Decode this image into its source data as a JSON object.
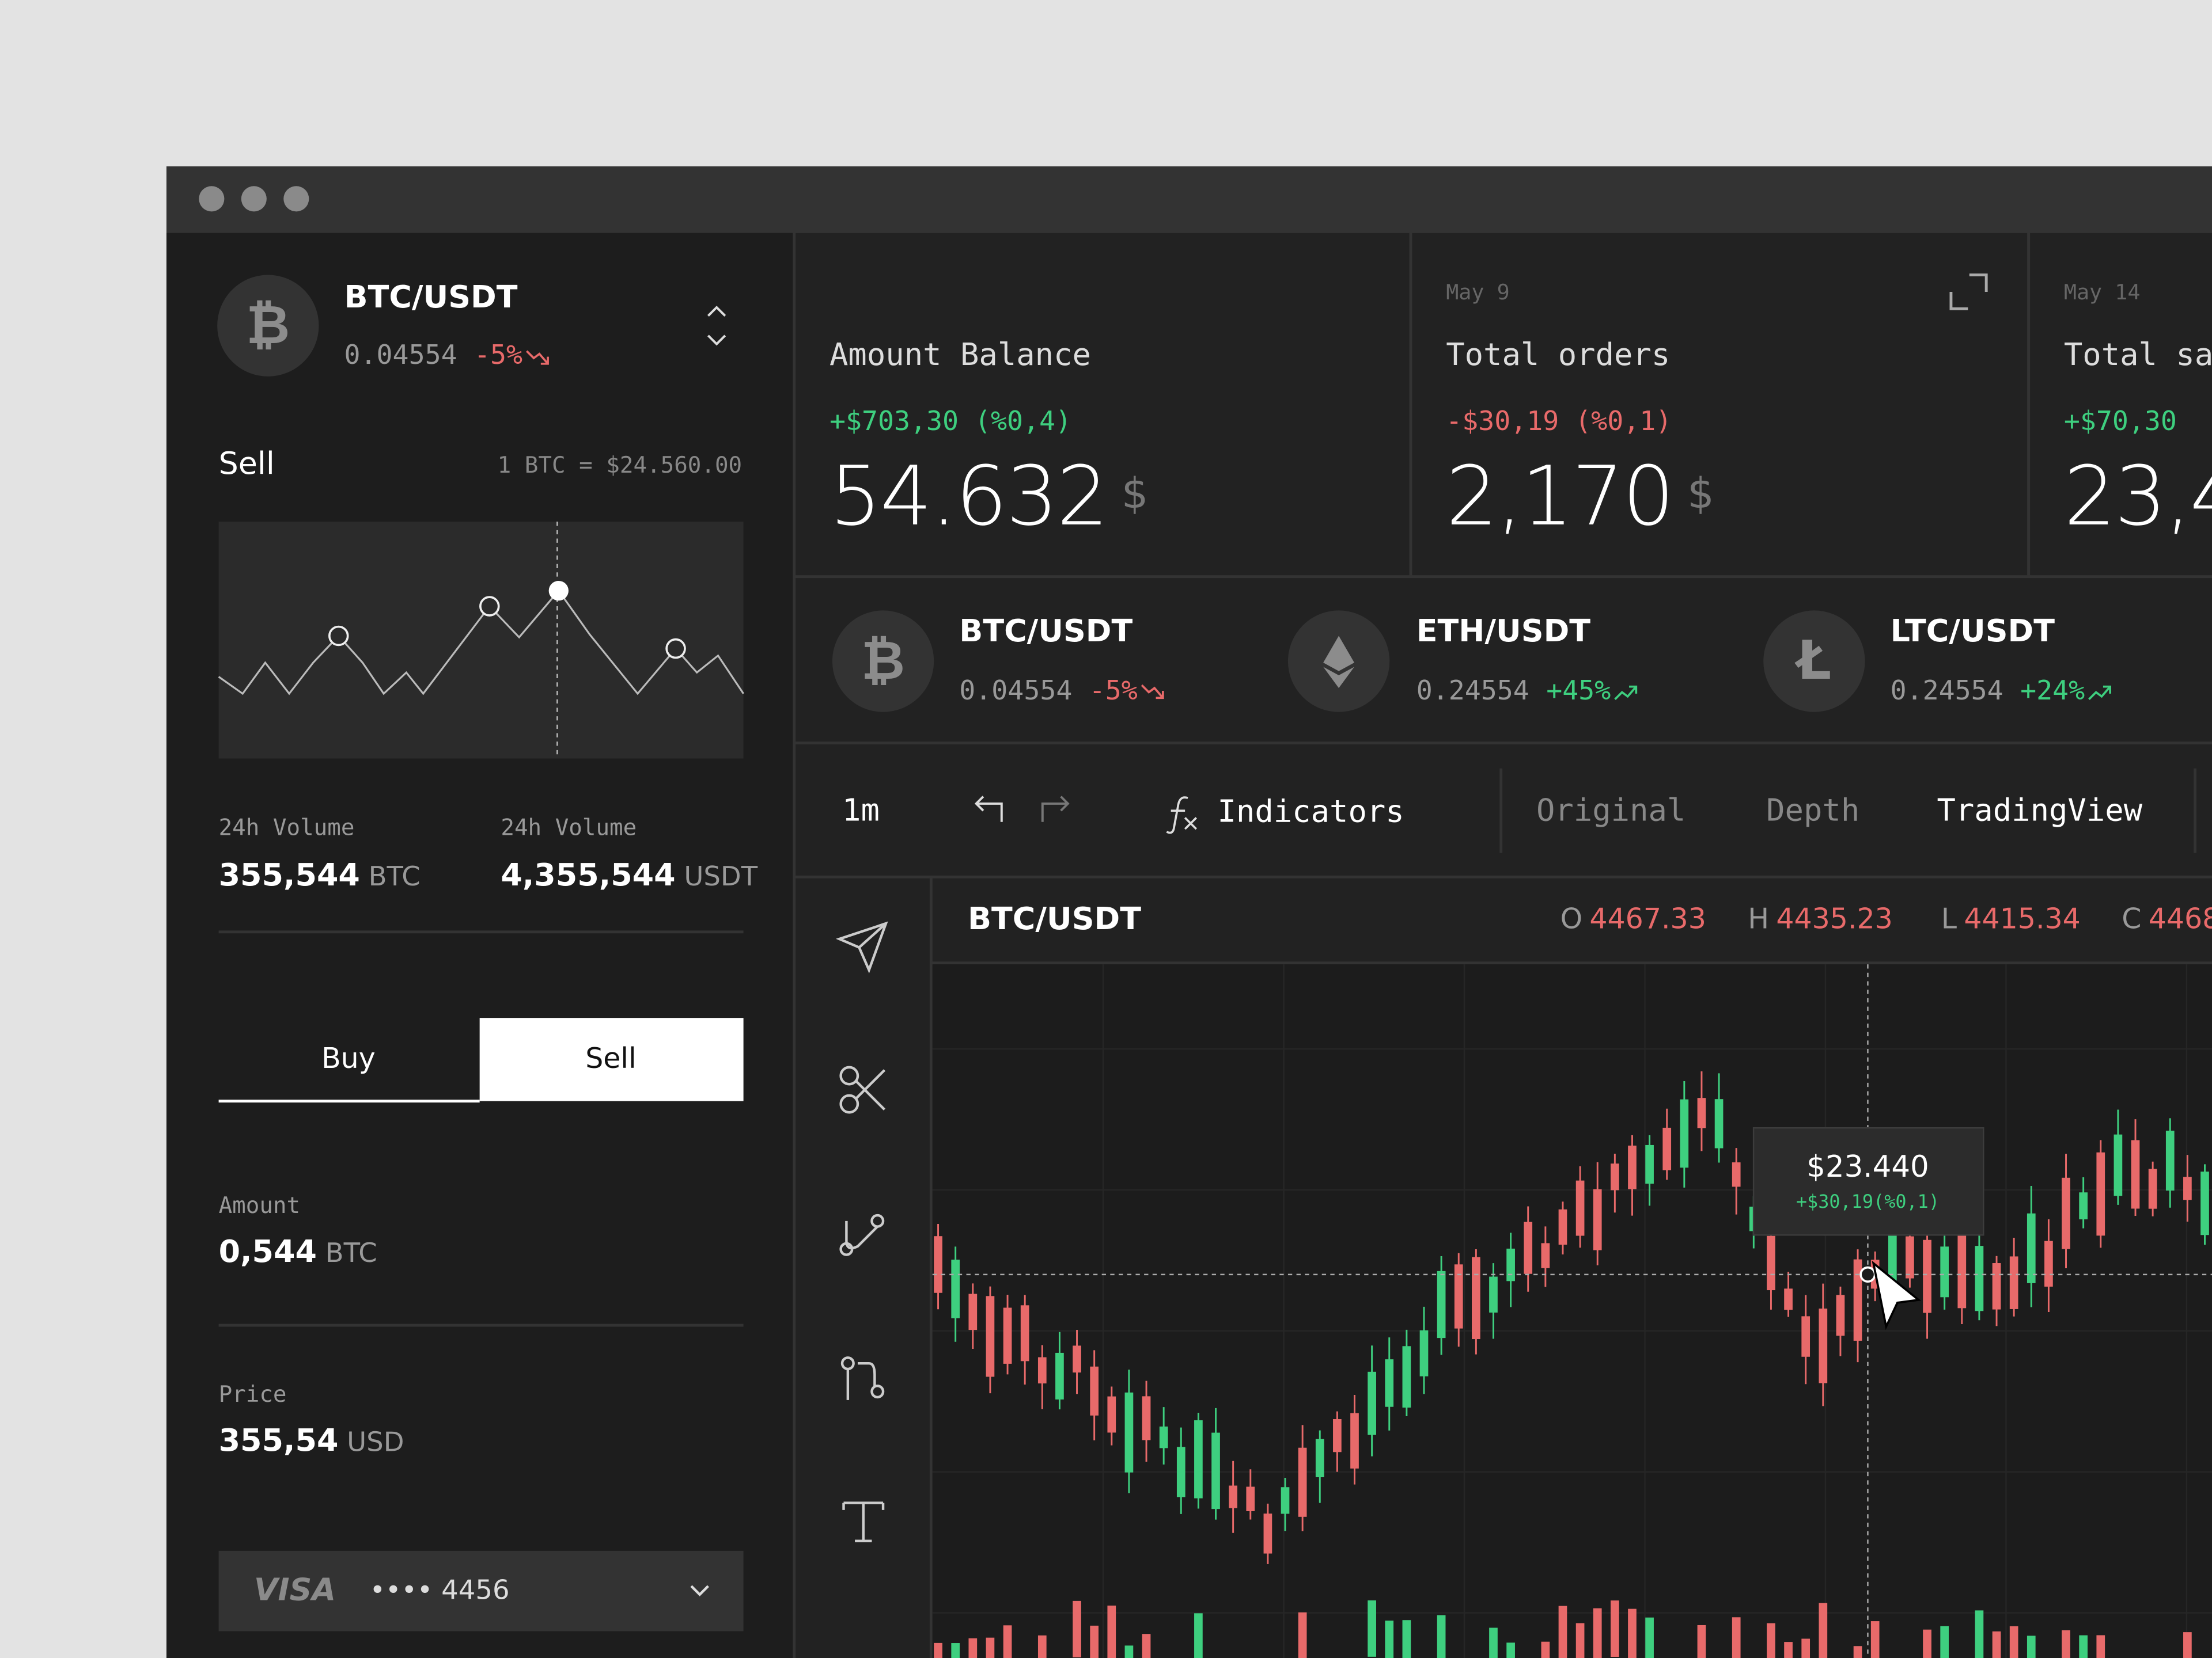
{
  "pair": {
    "symbol": "₿",
    "name": "BTC/USDT",
    "price": "0.04554",
    "change": "-5%"
  },
  "sell": {
    "title": "Sell",
    "rate": "1 BTC = $24.560.00"
  },
  "volumes": [
    {
      "label": "24h Volume",
      "value": "355,544",
      "unit": "BTC"
    },
    {
      "label": "24h Volume",
      "value": "4,355,544",
      "unit": "USDT"
    }
  ],
  "tabs": [
    "Buy",
    "Sell"
  ],
  "fields": [
    {
      "label": "Amount",
      "value": "0,544",
      "unit": "BTC"
    },
    {
      "label": "Price",
      "value": "355,54",
      "unit": "USD"
    }
  ],
  "card": {
    "brand": "VISA",
    "number": "•••• 4456"
  },
  "stats": [
    {
      "title": "Amount Balance",
      "change": "+$703,30 (%0,4)",
      "value": "54.632",
      "unit": "$"
    },
    {
      "date": "May 9",
      "title": "Total orders",
      "change": "-$30,19 (%0,1)",
      "value": "2,170",
      "unit": "$"
    },
    {
      "date": "May 14",
      "title": "Total sa",
      "change": "+$70,30",
      "value": "23,4"
    }
  ],
  "tickers": [
    {
      "symbol": "₿",
      "name": "BTC/USDT",
      "price": "0.04554",
      "change": "-5%"
    },
    {
      "name": "ETH/USDT",
      "price": "0.24554",
      "change": "+45%"
    },
    {
      "symbol": "Ł",
      "name": "LTC/USDT",
      "price": "0.24554",
      "change": "+24%"
    }
  ],
  "toolbar": {
    "interval": "1m",
    "indicators": "Indicators",
    "views": [
      "Original",
      "Depth",
      "TradingView"
    ]
  },
  "chart": {
    "pair": "BTC/USDT",
    "ohlc": [
      {
        "key": "O",
        "value": "4467.33"
      },
      {
        "key": "H",
        "value": "4435.23"
      },
      {
        "key": "L",
        "value": "4415.34"
      },
      {
        "key": "C",
        "value": "4468"
      }
    ],
    "tooltip": {
      "price": "$23.440",
      "change": "+$30,19(%0,1)"
    }
  }
}
